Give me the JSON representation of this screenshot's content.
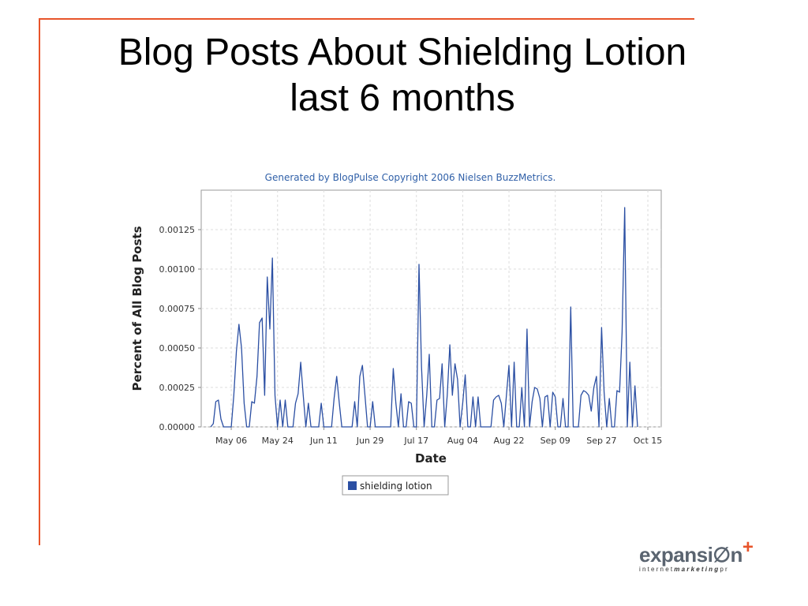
{
  "slide": {
    "title_line1": "Blog Posts About Shielding Lotion",
    "title_line2": "last 6 months"
  },
  "chart_data": {
    "type": "line",
    "title": "Generated by BlogPulse Copyright 2006 Nielsen BuzzMetrics.",
    "xlabel": "Date",
    "ylabel": "Percent of All Blog Posts",
    "ylim": [
      0,
      0.0015
    ],
    "x_ticks": [
      "May 06",
      "May 24",
      "Jun 11",
      "Jun 29",
      "Jul 17",
      "Aug 04",
      "Aug 22",
      "Sep 09",
      "Sep 27",
      "Oct 15"
    ],
    "y_ticks": [
      "0.00000",
      "0.00025",
      "0.00050",
      "0.00075",
      "0.00100",
      "0.00125"
    ],
    "y_tick_values": [
      0,
      0.00025,
      0.0005,
      0.00075,
      0.001,
      0.00125
    ],
    "grid": true,
    "legend_position": "bottom-center",
    "series": [
      {
        "name": "shielding lotion",
        "color": "#2b4fa3",
        "x_start": "2006-04-28",
        "values": [
          0,
          2e-05,
          0.00016,
          0.00017,
          5e-05,
          0,
          0,
          0,
          0,
          0.0002,
          0.00048,
          0.00065,
          0.0005,
          0.00015,
          0,
          0,
          0.00016,
          0.00015,
          0.00032,
          0.00066,
          0.00069,
          0.0002,
          0.00095,
          0.00062,
          0.00107,
          0.0002,
          0,
          0.00017,
          0,
          0.00017,
          0,
          0,
          0,
          0.00015,
          0.00021,
          0.00041,
          0.0002,
          0,
          0.00015,
          0,
          0,
          0,
          0,
          0.00015,
          0,
          0,
          0,
          0,
          0.00018,
          0.00032,
          0.00015,
          0,
          0,
          0,
          0,
          0,
          0.00016,
          0,
          0.00032,
          0.00039,
          0.0002,
          0,
          0,
          0.00016,
          0,
          0,
          0,
          0,
          0,
          0,
          0,
          0.00037,
          0.00015,
          0,
          0.00021,
          0,
          0,
          0.00016,
          0.00015,
          0,
          0,
          0.00103,
          0.00038,
          0,
          0.0002,
          0.00046,
          0,
          0,
          0.00017,
          0.00018,
          0.0004,
          0,
          0.0002,
          0.00052,
          0.0002,
          0.0004,
          0.0003,
          0,
          0.00015,
          0.00033,
          0,
          0,
          0.00019,
          0,
          0.00019,
          0,
          0,
          0,
          0,
          0,
          0.00017,
          0.00019,
          0.0002,
          0.00015,
          0,
          0.0002,
          0.00039,
          0,
          0.00041,
          0,
          0,
          0.00025,
          0,
          0.00062,
          0,
          0.00016,
          0.00025,
          0.00024,
          0.00018,
          0,
          0.00019,
          0.0002,
          0,
          0.00022,
          0.00019,
          0,
          0,
          0.00018,
          0,
          0,
          0.00076,
          0,
          0,
          0,
          0.0002,
          0.00023,
          0.00022,
          0.0002,
          0.0001,
          0.00025,
          0.00032,
          0,
          0.00063,
          0.00022,
          0,
          0.00018,
          0,
          0,
          0.00023,
          0.00022,
          0.0006,
          0.00139,
          0,
          0.00041,
          0,
          0.00026,
          0
        ]
      }
    ]
  },
  "logo": {
    "main_text": "expansi",
    "main_glyph": "∅",
    "main_text_end": "n",
    "plus": "+",
    "sub_text_a": "internet",
    "sub_text_b": "marketing",
    "sub_text_c": "pr"
  }
}
